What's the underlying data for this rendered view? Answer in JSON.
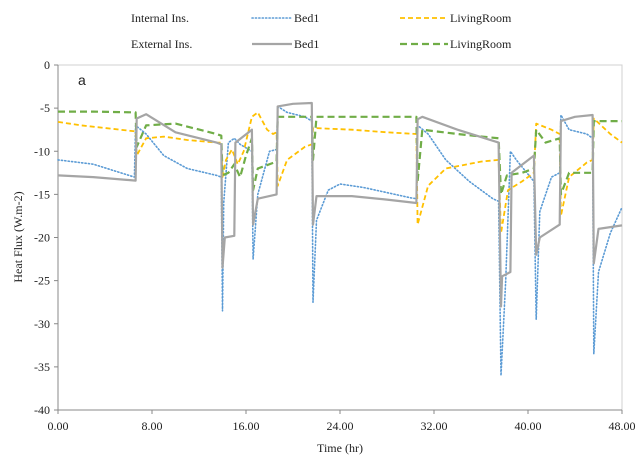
{
  "chart_data": {
    "type": "line",
    "panel_label": "a",
    "xlabel": "Time (hr)",
    "ylabel": "Heat Flux (W.m-2)",
    "xlim": [
      0,
      48
    ],
    "ylim": [
      -40,
      0
    ],
    "x_ticks": [
      "0.00",
      "8.00",
      "16.00",
      "24.00",
      "32.00",
      "40.00",
      "48.00"
    ],
    "y_ticks": [
      "0",
      "-5",
      "-10",
      "-15",
      "-20",
      "-25",
      "-30",
      "-35",
      "-40"
    ],
    "x_tick_values": [
      0,
      8,
      16,
      24,
      32,
      40,
      48
    ],
    "y_tick_values": [
      0,
      -5,
      -10,
      -15,
      -20,
      -25,
      -30,
      -35,
      -40
    ],
    "grid": false,
    "legend": {
      "placement": "top",
      "groups": [
        "Internal Ins.",
        "External Ins."
      ]
    },
    "series": [
      {
        "name": "Bed1",
        "group": "Internal Ins.",
        "color": "#5b9bd5",
        "style": "dotted",
        "points": [
          [
            0,
            -11
          ],
          [
            3,
            -11.5
          ],
          [
            6.5,
            -13
          ],
          [
            6.6,
            -7
          ],
          [
            7.5,
            -8
          ],
          [
            9,
            -10.5
          ],
          [
            11,
            -12
          ],
          [
            13.5,
            -12.8
          ],
          [
            13.9,
            -13
          ],
          [
            14,
            -28.5
          ],
          [
            14.1,
            -16
          ],
          [
            14.5,
            -9
          ],
          [
            15,
            -8.5
          ],
          [
            15.5,
            -9.2
          ],
          [
            16.5,
            -10
          ],
          [
            16.6,
            -22.5
          ],
          [
            17,
            -15
          ],
          [
            18,
            -10
          ],
          [
            18.6,
            -9.8
          ],
          [
            18.7,
            -4.8
          ],
          [
            19.5,
            -5.5
          ],
          [
            21,
            -6
          ],
          [
            21.6,
            -6.5
          ],
          [
            21.7,
            -27.5
          ],
          [
            22,
            -18
          ],
          [
            23,
            -14.5
          ],
          [
            24,
            -13.8
          ],
          [
            26,
            -14.2
          ],
          [
            28,
            -14.8
          ],
          [
            30,
            -15.4
          ],
          [
            30.5,
            -15.5
          ],
          [
            30.6,
            -7
          ],
          [
            31.5,
            -8
          ],
          [
            33,
            -11
          ],
          [
            35,
            -13.5
          ],
          [
            37,
            -15.5
          ],
          [
            37.5,
            -15.8
          ],
          [
            37.7,
            -36
          ],
          [
            38.1,
            -25
          ],
          [
            38.5,
            -10
          ],
          [
            39,
            -11
          ],
          [
            40.5,
            -13.5
          ],
          [
            40.7,
            -29.5
          ],
          [
            41,
            -17
          ],
          [
            42,
            -13
          ],
          [
            42.7,
            -12.5
          ],
          [
            42.8,
            -5.8
          ],
          [
            43.5,
            -7.5
          ],
          [
            45,
            -8
          ],
          [
            45.5,
            -8.5
          ],
          [
            45.6,
            -33.5
          ],
          [
            46,
            -24
          ],
          [
            47,
            -19.5
          ],
          [
            48,
            -16.5
          ]
        ]
      },
      {
        "name": "LivingRoom",
        "group": "Internal Ins.",
        "color": "#ffc000",
        "style": "dashed",
        "points": [
          [
            0,
            -6.6
          ],
          [
            2,
            -7
          ],
          [
            4,
            -7.3
          ],
          [
            6.6,
            -7.7
          ],
          [
            6.7,
            -10.5
          ],
          [
            7.5,
            -8.5
          ],
          [
            9,
            -8.3
          ],
          [
            11,
            -8.7
          ],
          [
            13.5,
            -9
          ],
          [
            13.9,
            -9
          ],
          [
            14,
            -13
          ],
          [
            14.3,
            -11
          ],
          [
            14.8,
            -9.8
          ],
          [
            15.3,
            -11.5
          ],
          [
            15.8,
            -10
          ],
          [
            16.5,
            -6
          ],
          [
            17,
            -5.5
          ],
          [
            17.8,
            -7.5
          ],
          [
            18.3,
            -8
          ],
          [
            18.6,
            -7.8
          ],
          [
            18.7,
            -14
          ],
          [
            19.5,
            -11
          ],
          [
            21,
            -9.5
          ],
          [
            21.6,
            -9.2
          ],
          [
            21.7,
            -7.3
          ],
          [
            25,
            -7.5
          ],
          [
            28,
            -7.8
          ],
          [
            30.5,
            -8
          ],
          [
            30.6,
            -18.5
          ],
          [
            31.5,
            -14
          ],
          [
            33,
            -12
          ],
          [
            36,
            -11.2
          ],
          [
            37.5,
            -11
          ],
          [
            37.7,
            -19.5
          ],
          [
            38.3,
            -14.5
          ],
          [
            39.5,
            -13.5
          ],
          [
            40.5,
            -12.5
          ],
          [
            40.7,
            -6.8
          ],
          [
            42,
            -7.5
          ],
          [
            42.7,
            -8
          ],
          [
            42.8,
            -17.5
          ],
          [
            43.5,
            -13
          ],
          [
            45,
            -11.3
          ],
          [
            45.5,
            -11
          ],
          [
            45.6,
            -6.2
          ],
          [
            47,
            -8
          ],
          [
            48,
            -9
          ]
        ]
      },
      {
        "name": "Bed1",
        "group": "External Ins.",
        "color": "#a5a5a5",
        "style": "solid",
        "points": [
          [
            0,
            -12.8
          ],
          [
            3,
            -13
          ],
          [
            6.6,
            -13.4
          ],
          [
            6.7,
            -6.2
          ],
          [
            7.5,
            -5.7
          ],
          [
            10,
            -7.8
          ],
          [
            13.5,
            -9
          ],
          [
            13.9,
            -9.2
          ],
          [
            14,
            -23.5
          ],
          [
            14.2,
            -20
          ],
          [
            15,
            -19.8
          ],
          [
            15.1,
            -9
          ],
          [
            16.5,
            -7.5
          ],
          [
            16.6,
            -18.5
          ],
          [
            17,
            -15.5
          ],
          [
            18.6,
            -15
          ],
          [
            18.7,
            -4.8
          ],
          [
            20,
            -4.5
          ],
          [
            21.6,
            -4.4
          ],
          [
            21.7,
            -18.5
          ],
          [
            22,
            -15.2
          ],
          [
            25,
            -15.2
          ],
          [
            28,
            -15.6
          ],
          [
            30.5,
            -16
          ],
          [
            30.6,
            -6.3
          ],
          [
            31,
            -6
          ],
          [
            34,
            -7.5
          ],
          [
            37.5,
            -9
          ],
          [
            37.7,
            -28
          ],
          [
            37.8,
            -24.5
          ],
          [
            38.5,
            -24
          ],
          [
            38.6,
            -12.5
          ],
          [
            40.5,
            -10.5
          ],
          [
            40.7,
            -22
          ],
          [
            41,
            -20
          ],
          [
            42.7,
            -18.5
          ],
          [
            42.8,
            -6.5
          ],
          [
            44,
            -6
          ],
          [
            45.5,
            -5.8
          ],
          [
            45.6,
            -23
          ],
          [
            46,
            -19
          ],
          [
            48,
            -18.6
          ]
        ]
      },
      {
        "name": "LivingRoom",
        "group": "External Ins.",
        "color": "#70ad47",
        "style": "dashed",
        "points": [
          [
            0,
            -5.4
          ],
          [
            3,
            -5.4
          ],
          [
            6.6,
            -5.5
          ],
          [
            6.7,
            -9.5
          ],
          [
            7.5,
            -7
          ],
          [
            10,
            -6.8
          ],
          [
            13.5,
            -8
          ],
          [
            13.9,
            -8.2
          ],
          [
            14,
            -12.8
          ],
          [
            14.5,
            -12.5
          ],
          [
            15,
            -11.5
          ],
          [
            15.5,
            -13
          ],
          [
            16,
            -10.5
          ],
          [
            16.5,
            -8.5
          ],
          [
            16.6,
            -14.5
          ],
          [
            17,
            -12
          ],
          [
            18.6,
            -11.2
          ],
          [
            18.7,
            -6
          ],
          [
            21.6,
            -6
          ],
          [
            21.7,
            -11
          ],
          [
            22,
            -6
          ],
          [
            30.5,
            -6
          ],
          [
            30.6,
            -13.5
          ],
          [
            31,
            -7.5
          ],
          [
            34,
            -8
          ],
          [
            37.5,
            -8.5
          ],
          [
            37.7,
            -15
          ],
          [
            38.2,
            -12.8
          ],
          [
            39.5,
            -12.5
          ],
          [
            40.5,
            -12
          ],
          [
            40.7,
            -7.5
          ],
          [
            41.5,
            -9
          ],
          [
            42.7,
            -8.5
          ],
          [
            42.8,
            -15
          ],
          [
            43.5,
            -12.5
          ],
          [
            45.5,
            -12.5
          ],
          [
            45.6,
            -6.5
          ],
          [
            48,
            -6.5
          ]
        ]
      }
    ]
  }
}
